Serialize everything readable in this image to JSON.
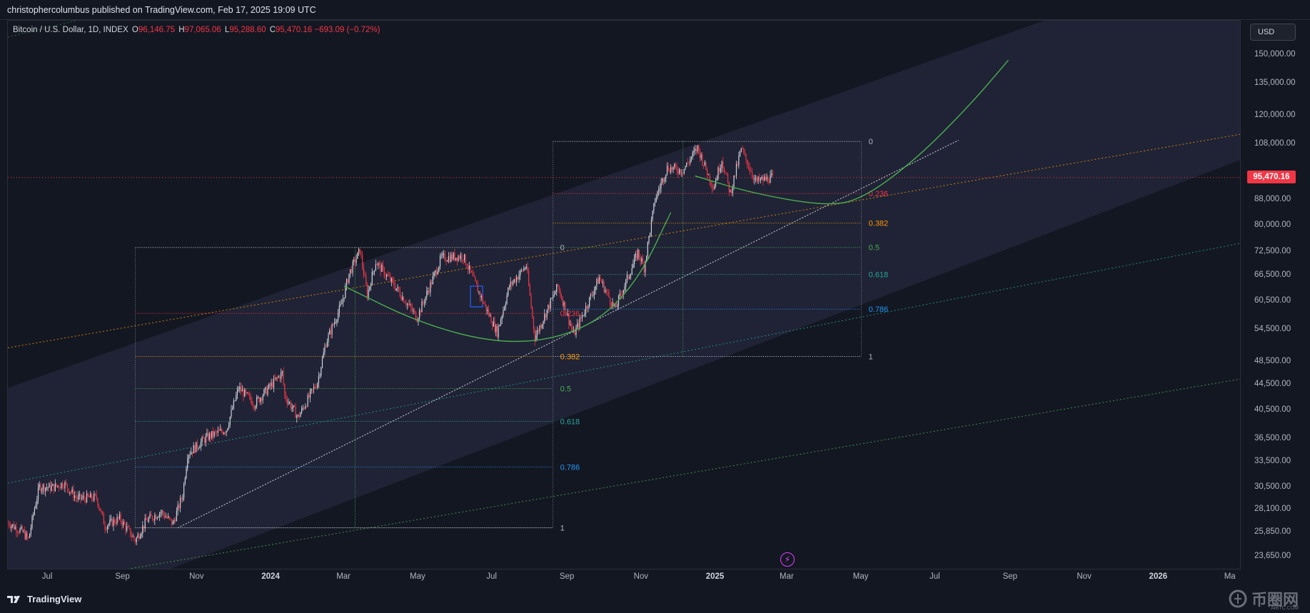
{
  "header": {
    "publisher_line": "christophercolumbus published on TradingView.com, Feb 17, 2025 19:09 UTC"
  },
  "symbol": {
    "name": "Bitcoin / U.S. Dollar, 1D, INDEX",
    "open_label": "O",
    "open": "96,146.75",
    "high_label": "H",
    "high": "97,065.06",
    "low_label": "L",
    "low": "95,288.60",
    "close_label": "C",
    "close": "95,470.16",
    "change": "−693.09 (−0.72%)"
  },
  "currency_button": "USD",
  "last_price_label": "95,470.16",
  "colors": {
    "background": "#131722",
    "bull": "#d1d4dc",
    "bear": "#f23645",
    "channel": "#2a2e45",
    "curve": "#4caf50",
    "fib_0236": "#f23645",
    "fib_0382": "#ff9800",
    "fib_05": "#4caf50",
    "fib_0618": "#26a69a",
    "fib_0786": "#2196f3"
  },
  "chart_data": {
    "type": "candlestick",
    "symbol": "Bitcoin / U.S. Dollar",
    "interval": "1D",
    "y_scale": "log",
    "ylim": [
      22500,
      170000
    ],
    "x_range": [
      "2023-05-29",
      "2026-03-10"
    ],
    "y_ticks": [
      {
        "value": 150000,
        "label": "150,000.00"
      },
      {
        "value": 135000,
        "label": "135,000.00"
      },
      {
        "value": 120000,
        "label": "120,000.00"
      },
      {
        "value": 108000,
        "label": "108,000.00"
      },
      {
        "value": 88000,
        "label": "88,000.00"
      },
      {
        "value": 80000,
        "label": "80,000.00"
      },
      {
        "value": 72500,
        "label": "72,500.00"
      },
      {
        "value": 66500,
        "label": "66,500.00"
      },
      {
        "value": 60500,
        "label": "60,500.00"
      },
      {
        "value": 54500,
        "label": "54,500.00"
      },
      {
        "value": 48500,
        "label": "48,500.00"
      },
      {
        "value": 44500,
        "label": "44,500.00"
      },
      {
        "value": 40500,
        "label": "40,500.00"
      },
      {
        "value": 36500,
        "label": "36,500.00"
      },
      {
        "value": 33500,
        "label": "33,500.00"
      },
      {
        "value": 30500,
        "label": "30,500.00"
      },
      {
        "value": 28100,
        "label": "28,100.00"
      },
      {
        "value": 25850,
        "label": "25,850.00"
      },
      {
        "value": 23650,
        "label": "23,650.00"
      }
    ],
    "x_ticks": [
      {
        "date": "2023-07-01",
        "label": "Jul",
        "bold": false
      },
      {
        "date": "2023-09-01",
        "label": "Sep",
        "bold": false
      },
      {
        "date": "2023-11-01",
        "label": "Nov",
        "bold": false
      },
      {
        "date": "2024-01-01",
        "label": "2024",
        "bold": true
      },
      {
        "date": "2024-03-01",
        "label": "Mar",
        "bold": false
      },
      {
        "date": "2024-05-01",
        "label": "May",
        "bold": false
      },
      {
        "date": "2024-07-01",
        "label": "Jul",
        "bold": false
      },
      {
        "date": "2024-09-01",
        "label": "Sep",
        "bold": false
      },
      {
        "date": "2024-11-01",
        "label": "Nov",
        "bold": false
      },
      {
        "date": "2025-01-01",
        "label": "2025",
        "bold": true
      },
      {
        "date": "2025-03-01",
        "label": "Mar",
        "bold": false
      },
      {
        "date": "2025-05-01",
        "label": "May",
        "bold": false
      },
      {
        "date": "2025-07-01",
        "label": "Jul",
        "bold": false
      },
      {
        "date": "2025-09-01",
        "label": "Sep",
        "bold": false
      },
      {
        "date": "2025-11-01",
        "label": "Nov",
        "bold": false
      },
      {
        "date": "2026-01-01",
        "label": "2026",
        "bold": true
      },
      {
        "date": "2026-03-01",
        "label": "Ma",
        "bold": false
      }
    ],
    "price_path": [
      [
        "2023-05-29",
        26800
      ],
      [
        "2023-06-10",
        25900
      ],
      [
        "2023-06-15",
        25200
      ],
      [
        "2023-06-20",
        28300
      ],
      [
        "2023-06-24",
        30600
      ],
      [
        "2023-07-05",
        30500
      ],
      [
        "2023-07-14",
        31000
      ],
      [
        "2023-07-25",
        29300
      ],
      [
        "2023-08-10",
        29400
      ],
      [
        "2023-08-17",
        26500
      ],
      [
        "2023-08-29",
        27200
      ],
      [
        "2023-09-11",
        25100
      ],
      [
        "2023-09-20",
        27000
      ],
      [
        "2023-10-02",
        27900
      ],
      [
        "2023-10-12",
        26700
      ],
      [
        "2023-10-20",
        29700
      ],
      [
        "2023-10-24",
        34500
      ],
      [
        "2023-11-09",
        36700
      ],
      [
        "2023-11-25",
        37800
      ],
      [
        "2023-12-05",
        44000
      ],
      [
        "2023-12-18",
        41500
      ],
      [
        "2024-01-10",
        46500
      ],
      [
        "2024-01-12",
        42800
      ],
      [
        "2024-01-23",
        39500
      ],
      [
        "2024-02-08",
        45000
      ],
      [
        "2024-02-15",
        52000
      ],
      [
        "2024-02-28",
        60000
      ],
      [
        "2024-03-05",
        67000
      ],
      [
        "2024-03-14",
        73000
      ],
      [
        "2024-03-20",
        62000
      ],
      [
        "2024-03-27",
        70000
      ],
      [
        "2024-04-13",
        63500
      ],
      [
        "2024-04-30",
        57000
      ],
      [
        "2024-05-20",
        71000
      ],
      [
        "2024-06-07",
        71500
      ],
      [
        "2024-06-24",
        60000
      ],
      [
        "2024-07-05",
        54000
      ],
      [
        "2024-07-15",
        64000
      ],
      [
        "2024-07-29",
        69000
      ],
      [
        "2024-08-05",
        53000
      ],
      [
        "2024-08-24",
        64000
      ],
      [
        "2024-09-06",
        53500
      ],
      [
        "2024-09-27",
        66000
      ],
      [
        "2024-10-10",
        58800
      ],
      [
        "2024-10-29",
        72500
      ],
      [
        "2024-11-03",
        68500
      ],
      [
        "2024-11-12",
        88000
      ],
      [
        "2024-11-22",
        99000
      ],
      [
        "2024-12-05",
        98000
      ],
      [
        "2024-12-17",
        106500
      ],
      [
        "2024-12-30",
        92000
      ],
      [
        "2025-01-06",
        102000
      ],
      [
        "2025-01-13",
        90000
      ],
      [
        "2025-01-22",
        106000
      ],
      [
        "2025-02-03",
        94000
      ],
      [
        "2025-02-17",
        95470
      ]
    ],
    "last_close": 95470.16,
    "fib_retracements": [
      {
        "name": "fib-left",
        "start": "2023-09-11",
        "end": "2024-08-20",
        "levels": [
          {
            "ratio": "0",
            "value": 73800
          },
          {
            "ratio": "0.236",
            "value": 57900
          },
          {
            "ratio": "0.382",
            "value": 49400
          },
          {
            "ratio": "0.5",
            "value": 43900
          },
          {
            "ratio": "0.618",
            "value": 38900
          },
          {
            "ratio": "0.786",
            "value": 32900
          },
          {
            "ratio": "1",
            "value": 26300
          }
        ]
      },
      {
        "name": "fib-right",
        "start": "2024-08-20",
        "end": "2025-05-01",
        "levels": [
          {
            "ratio": "0",
            "value": 109000
          },
          {
            "ratio": "0.236",
            "value": 90000
          },
          {
            "ratio": "0.382",
            "value": 80700
          },
          {
            "ratio": "0.5",
            "value": 73800
          },
          {
            "ratio": "0.618",
            "value": 66800
          },
          {
            "ratio": "0.786",
            "value": 58800
          },
          {
            "ratio": "1",
            "value": 49400
          }
        ]
      }
    ],
    "curves": [
      {
        "name": "left-bowl",
        "points": [
          [
            "2024-03-01",
            64000
          ],
          [
            "2024-05-01",
            56000
          ],
          [
            "2024-07-01",
            52000
          ],
          [
            "2024-08-20",
            52500
          ],
          [
            "2024-10-01",
            57000
          ],
          [
            "2024-11-01",
            67000
          ],
          [
            "2024-11-25",
            84000
          ]
        ]
      },
      {
        "name": "right-bowl",
        "points": [
          [
            "2024-12-15",
            96000
          ],
          [
            "2025-02-01",
            90000
          ],
          [
            "2025-04-01",
            86000
          ],
          [
            "2025-05-01",
            88000
          ],
          [
            "2025-06-15",
            102000
          ],
          [
            "2025-07-30",
            125000
          ],
          [
            "2025-08-30",
            147000
          ]
        ]
      }
    ]
  },
  "footer": {
    "brand": "TradingView"
  },
  "watermark": {
    "text": "币圈网",
    "sub": "AIBTC.COM"
  }
}
